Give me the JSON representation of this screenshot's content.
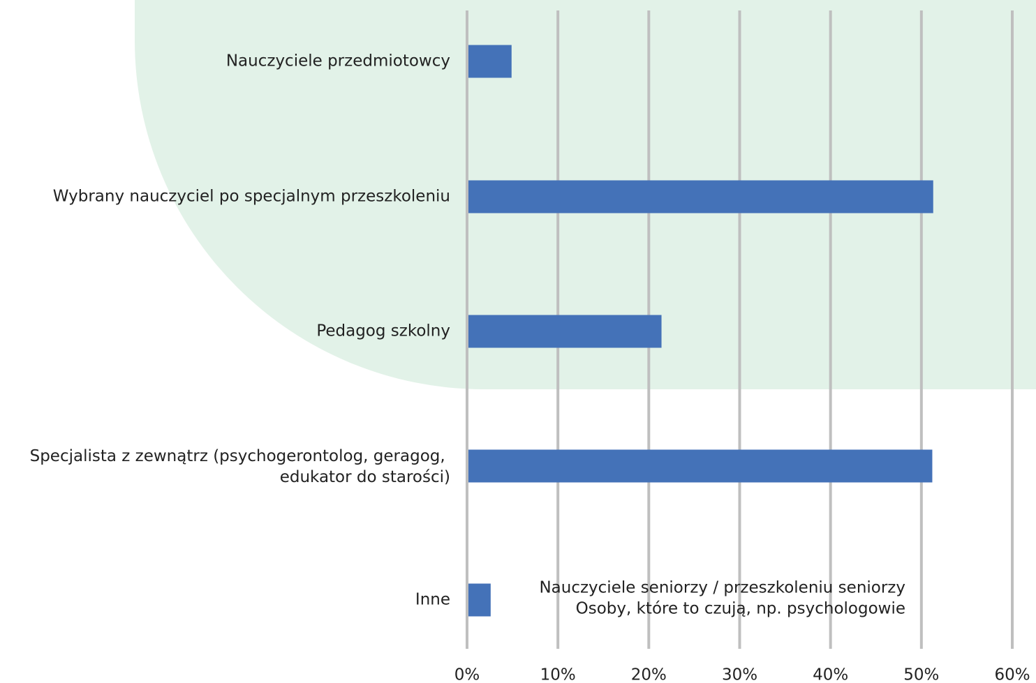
{
  "chart_data": {
    "type": "bar",
    "orientation": "horizontal",
    "categories": [
      "Nauczyciele przedmiotowcy",
      "Wybrany nauczyciel po specjalnym przeszkoleniu",
      "Pedagog szkolny",
      "Specjalista z zewnątrz (psychogerontolog, geragog, edukator do starości)",
      "Inne"
    ],
    "values": [
      4.9,
      51.3,
      21.4,
      51.2,
      2.6
    ],
    "color": "#4472b8",
    "xlim": [
      0,
      60
    ],
    "xticks": [
      {
        "value": 0,
        "label": "0%"
      },
      {
        "value": 10,
        "label": "10%"
      },
      {
        "value": 20,
        "label": "20%"
      },
      {
        "value": 30,
        "label": "30%"
      },
      {
        "value": 40,
        "label": "40%"
      },
      {
        "value": 50,
        "label": "50%"
      },
      {
        "value": 60,
        "label": "60%"
      }
    ],
    "grid": true,
    "annotation": [
      "Nauczyciele seniorzy / przeszkoleniu seniorzy",
      "Osoby, które to czują, np. psychologowie"
    ]
  }
}
